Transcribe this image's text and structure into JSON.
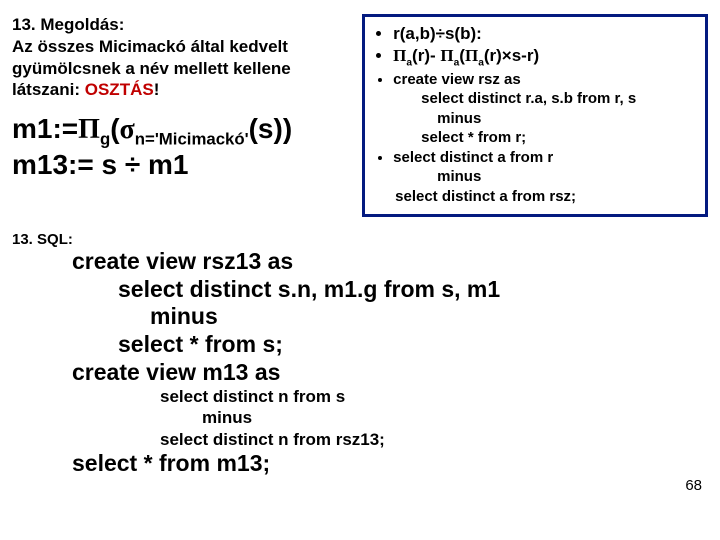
{
  "left": {
    "title": "13. Megoldás:",
    "line1": "Az összes Micimackó által kedvelt gyümölcsnek a név mellett kellene látszani: ",
    "oszt": "OSZTÁS",
    "bang": "!"
  },
  "formula": {
    "line1a": "m1:=",
    "line1b": "g",
    "line1c": "(",
    "line1d": "n='Micimackó'",
    "line1e": "(s))",
    "line2": "m13:= s ÷ m1"
  },
  "box": {
    "b1a": "r(a,b)÷s(b):",
    "b2": {
      "pre": "",
      "a": "a",
      "mid1": "(r)- ",
      "mid2": "(",
      "mid3": "(r)×s-r)"
    },
    "b3": "create view rsz as",
    "b3a": "select distinct r.a, s.b from r, s",
    "b3b": "minus",
    "b3c": "select * from r;",
    "b4": "select distinct a from r",
    "b4a": "minus",
    "b4b": "select distinct a from rsz;"
  },
  "sql": {
    "hdr": "13. SQL:",
    "l1": "create view rsz13 as",
    "l2": "select distinct s.n, m1.g from s, m1",
    "l3": "minus",
    "l4": "select * from s;",
    "l5": "create view m13 as",
    "l6": "select distinct n from s",
    "l7": "minus",
    "l8": "select distinct n from rsz13;",
    "l9": "select * from m13;"
  },
  "page": "68",
  "colors": {
    "border": "#041a80",
    "red": "#c00000"
  }
}
